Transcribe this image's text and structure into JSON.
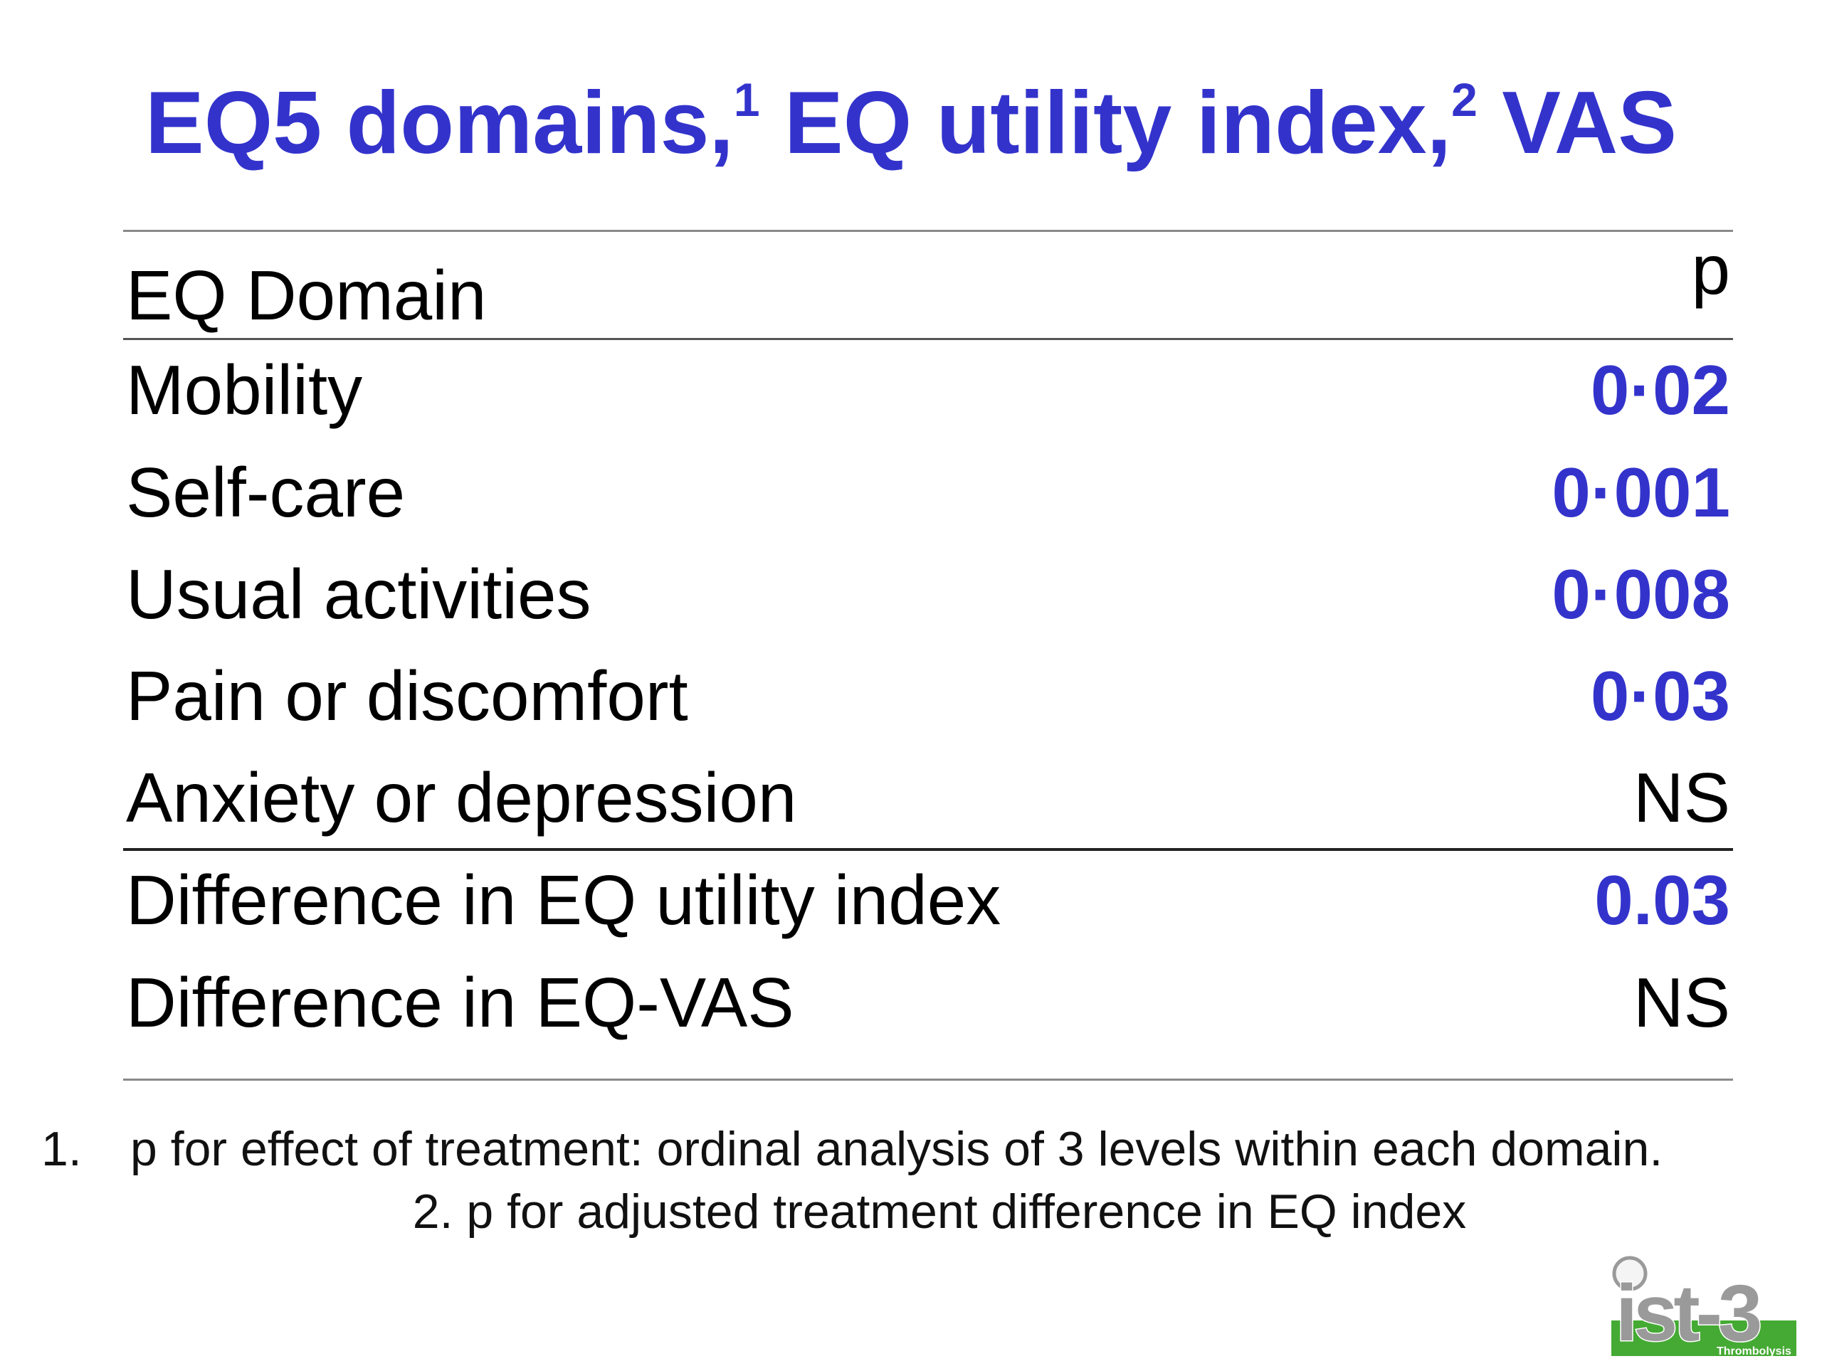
{
  "title": {
    "part1": "EQ5 domains,",
    "sup1": "1",
    "part2": " EQ utility index,",
    "sup2": "2",
    "part3": " VAS"
  },
  "table": {
    "header_label": "EQ Domain",
    "header_p": "p",
    "rows": [
      {
        "label": "Mobility",
        "p": "0·02"
      },
      {
        "label": "Self-care",
        "p": "0·001"
      },
      {
        "label": "Usual activities",
        "p": "0·008"
      },
      {
        "label": "Pain or discomfort",
        "p": "0·03"
      },
      {
        "label": "Anxiety or depression",
        "p": "NS"
      },
      {
        "label": "Difference in EQ utility index",
        "p": "0.03"
      },
      {
        "label": "Difference in EQ-VAS",
        "p": "NS"
      }
    ]
  },
  "footnotes": {
    "fn1_number": "1.",
    "fn1_text": "p for effect of treatment: ordinal analysis of 3 levels within each domain.",
    "fn2_text": "2. p for adjusted treatment difference in  EQ index"
  },
  "logo": {
    "text": "ist-3",
    "subtext": "Thrombolysis"
  },
  "colors": {
    "accent_blue": "#3333cc",
    "logo_green": "#44aa33",
    "logo_grey": "#9a9a9a"
  }
}
